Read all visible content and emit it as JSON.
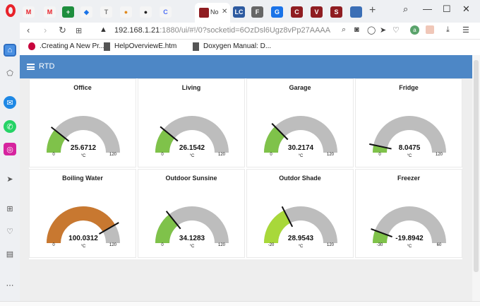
{
  "browser": {
    "tabs": [
      {
        "label": "M",
        "color": "#e8222a",
        "text_color": "#e8222a",
        "bg": "#f5f5f5"
      },
      {
        "label": "M",
        "color": "#e8222a",
        "text_color": "#e8222a",
        "bg": "#f5f5f5"
      },
      {
        "label": "+",
        "color": "#1e8e3e",
        "text_color": "#fff",
        "bg": "#1e8e3e"
      },
      {
        "label": "◆",
        "color": "#1a73e8",
        "text_color": "#1a73e8",
        "bg": "#f5f5f5"
      },
      {
        "label": "T",
        "color": "#777",
        "text_color": "#777",
        "bg": "#f5f5f5"
      },
      {
        "label": "●",
        "color": "#e08a1e",
        "text_color": "#e08a1e",
        "bg": "#f5f5f5"
      },
      {
        "label": "●",
        "color": "#222",
        "text_color": "#222",
        "bg": "#f5f5f5"
      },
      {
        "label": "C",
        "color": "#4c6ef5",
        "text_color": "#4c6ef5",
        "bg": "#f5f5f5"
      }
    ],
    "tab_suffixes": [
      "",
      "",
      "",
      "",
      "",
      "",
      "",
      ""
    ],
    "active_tab": {
      "label": "No"
    },
    "right_tabs": [
      {
        "label": "LC",
        "color": "#2d5aa0"
      },
      {
        "label": "F",
        "color": "#666"
      },
      {
        "label": "G",
        "color": "#1a73e8"
      },
      {
        "label": "C",
        "color": "#8f1d21"
      },
      {
        "label": "V",
        "color": "#8f1d21"
      },
      {
        "label": "S",
        "color": "#8f1d21"
      },
      {
        "label": "",
        "color": "#3b6fb6"
      }
    ],
    "url": {
      "host": "192.168.1.21",
      "path": ":1880/ui/#!/0?socketid=6OzDsl6Ugz8vPp27AAAA"
    },
    "bookmarks": [
      ".Creating A New Pr...",
      "HelpOverviewE.htm",
      "Doxygen Manual: D..."
    ]
  },
  "dashboard": {
    "title": "RTD",
    "gauges": [
      {
        "name": "Office",
        "value": "25.6712",
        "min": "0",
        "max": "120",
        "unit": "°C",
        "num": 25.6712,
        "lo": 0,
        "hi": 120,
        "color": "#7fc24a"
      },
      {
        "name": "Living",
        "value": "26.1542",
        "min": "0",
        "max": "120",
        "unit": "°C",
        "num": 26.1542,
        "lo": 0,
        "hi": 120,
        "color": "#7fc24a"
      },
      {
        "name": "Garage",
        "value": "30.2174",
        "min": "0",
        "max": "120",
        "unit": "°C",
        "num": 30.2174,
        "lo": 0,
        "hi": 120,
        "color": "#7fc24a"
      },
      {
        "name": "Fridge",
        "value": "8.0475",
        "min": "0",
        "max": "120",
        "unit": "°C",
        "num": 8.0475,
        "lo": 0,
        "hi": 120,
        "color": "#7fc24a"
      },
      {
        "name": "Boiling Water",
        "value": "100.0312",
        "min": "0",
        "max": "120",
        "unit": "°C",
        "num": 100.0312,
        "lo": 0,
        "hi": 120,
        "color": "#c87830"
      },
      {
        "name": "Outdoor Sunsine",
        "value": "34.1283",
        "min": "0",
        "max": "120",
        "unit": "°C",
        "num": 34.1283,
        "lo": 0,
        "hi": 120,
        "color": "#7fc24a"
      },
      {
        "name": "Outdor Shade",
        "value": "28.9543",
        "min": "-20",
        "max": "120",
        "unit": "°C",
        "num": 28.9543,
        "lo": -20,
        "hi": 120,
        "color": "#a8d83a"
      },
      {
        "name": "Freezer",
        "value": "-19.8942",
        "min": "-30",
        "max": "60",
        "unit": "°C",
        "num": -19.8942,
        "lo": -30,
        "hi": 60,
        "color": "#7fc24a"
      }
    ],
    "track_color": "#bdbdbd",
    "needle_color": "#111111",
    "header_color": "#4d87c6"
  }
}
